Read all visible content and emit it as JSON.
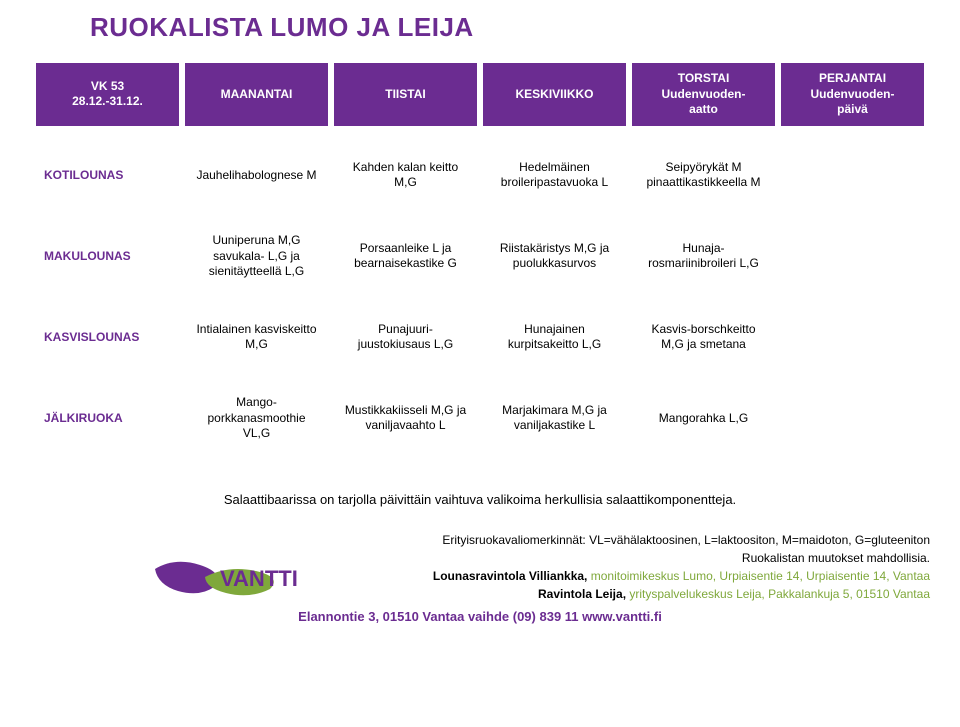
{
  "title": "RUOKALISTA LUMO JA LEIJA",
  "colors": {
    "brand": "#6b2c91",
    "green": "#7fa83b",
    "text": "#000000",
    "bg": "#ffffff"
  },
  "header": {
    "week": "VK 53\n28.12.-31.12.",
    "days": [
      "MAANANTAI",
      "TIISTAI",
      "KESKIVIIKKO",
      "TORSTAI\nUudenvuoden-\naatto",
      "PERJANTAI\nUudenvuoden-\npäivä"
    ]
  },
  "rows": [
    {
      "label": "KOTILOUNAS",
      "cells": [
        "Jauhelihabolognese M",
        "Kahden kalan keitto\nM,G",
        "Hedelmäinen\nbroileripastavuoka L",
        "Seipyörykät M\npinaattikastikkeella M",
        ""
      ]
    },
    {
      "label": "MAKULOUNAS",
      "cells": [
        "Uuniperuna M,G\nsavukala- L,G ja\nsienitäytteellä L,G",
        "Porsaanleike L ja\nbearnaisekastike G",
        "Riistakäristys M,G ja\npuolukkasurvos",
        "Hunaja-\nrosmariinibroileri L,G",
        ""
      ]
    },
    {
      "label": "KASVISLOUNAS",
      "cells": [
        "Intialainen kasviskeitto\nM,G",
        "Punajuuri-\njuustokiusaus L,G",
        "Hunajainen\nkurpitsakeitto L,G",
        "Kasvis-borschkeitto\nM,G ja smetana",
        ""
      ]
    },
    {
      "label": "JÄLKIRUOKA",
      "cells": [
        "Mango-\nporkkanasmoothie\nVL,G",
        "Mustikkakiisseli M,G ja\nvaniljavaahto L",
        "Marjakimara M,G ja\nvaniljakastike L",
        "Mangorahka L,G",
        ""
      ]
    }
  ],
  "note": "Salaattibaarissa on tarjolla päivittäin vaihtuva valikoima herkullisia salaattikomponentteja.",
  "footer": {
    "line1": "Erityisruokavaliomerkinnät: VL=vähälaktoosinen, L=laktoositon, M=maidoton, G=gluteeniton",
    "line2": "Ruokalistan muutokset mahdollisia.",
    "line3a": "Lounasravintola Villiankka, ",
    "line3b": "monitoimikeskus Lumo, Urpiaisentie 14, Urpiaisentie 14, Vantaa",
    "line4a": "Ravintola Leija, ",
    "line4b": "yrityspalvelukeskus Leija, Pakkalankuja 5, 01510 Vantaa",
    "address": "Elannontie 3, 01510 Vantaa  vaihde (09) 839 11  www.vantti.fi"
  },
  "logo_text": "VANTTI"
}
